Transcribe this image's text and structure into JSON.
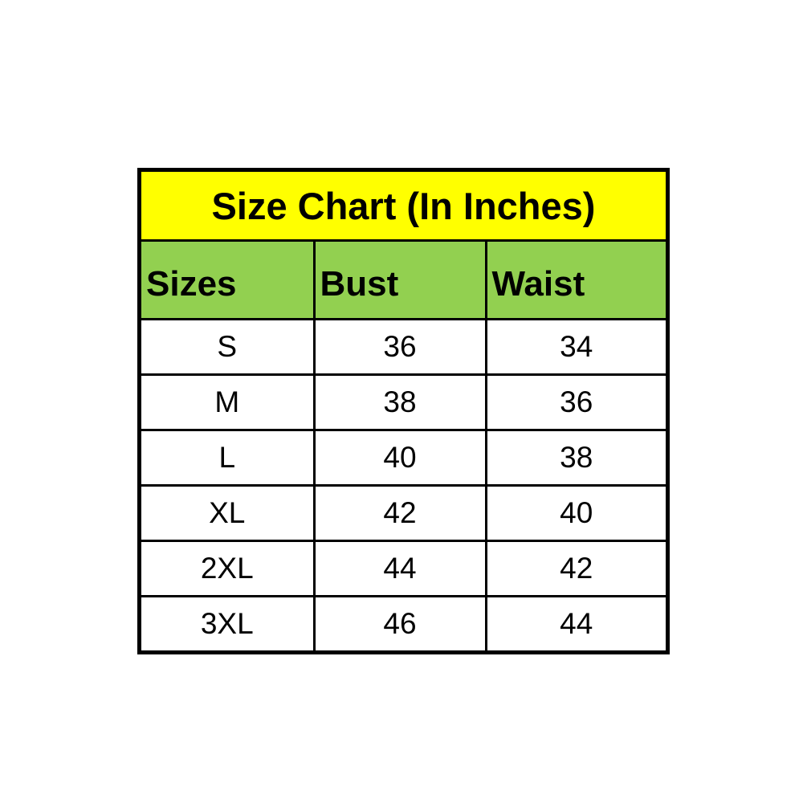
{
  "chart_data": {
    "type": "table",
    "title": "Size Chart (In Inches)",
    "columns": [
      "Sizes",
      "Bust",
      "Waist"
    ],
    "rows": [
      [
        "S",
        "36",
        "34"
      ],
      [
        "M",
        "38",
        "36"
      ],
      [
        "L",
        "40",
        "38"
      ],
      [
        "XL",
        "42",
        "40"
      ],
      [
        "2XL",
        "44",
        "42"
      ],
      [
        "3XL",
        "46",
        "44"
      ]
    ],
    "units": "inches",
    "layout": {
      "title_row_bg": "#FFFF00",
      "header_row_bg": "#92D050",
      "data_row_bg": "#FFFFFF",
      "border_color": "#000000",
      "text_color": "#000000",
      "page_bg": "#FFFFFF",
      "header_align": "left",
      "data_align": "center",
      "title_align": "center"
    }
  }
}
